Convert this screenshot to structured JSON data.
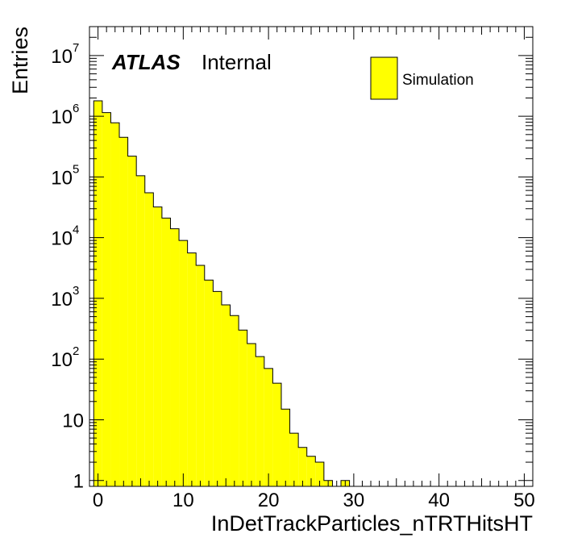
{
  "chart_data": {
    "type": "bar",
    "style": "histogram",
    "log_scale_y": true,
    "xlabel": "InDetTrackParticles_nTRTHitsHT",
    "ylabel": "Entries",
    "xlim": [
      -1,
      51
    ],
    "ylim": [
      0.8,
      30000000
    ],
    "x_ticks": [
      0,
      10,
      20,
      30,
      40,
      50
    ],
    "y_ticks": [
      {
        "value": 1,
        "base": "1",
        "exp": ""
      },
      {
        "value": 10,
        "base": "10",
        "exp": ""
      },
      {
        "value": 100,
        "base": "10",
        "exp": "2"
      },
      {
        "value": 1000,
        "base": "10",
        "exp": "3"
      },
      {
        "value": 10000,
        "base": "10",
        "exp": "4"
      },
      {
        "value": 100000,
        "base": "10",
        "exp": "5"
      },
      {
        "value": 1000000,
        "base": "10",
        "exp": "6"
      },
      {
        "value": 10000000,
        "base": "10",
        "exp": "7"
      }
    ],
    "bin_width": 1,
    "bins": [
      {
        "x": 0,
        "y": 1800000
      },
      {
        "x": 1,
        "y": 1150000
      },
      {
        "x": 2,
        "y": 780000
      },
      {
        "x": 3,
        "y": 450000
      },
      {
        "x": 4,
        "y": 220000
      },
      {
        "x": 5,
        "y": 105000
      },
      {
        "x": 6,
        "y": 55000
      },
      {
        "x": 7,
        "y": 32000
      },
      {
        "x": 8,
        "y": 21000
      },
      {
        "x": 9,
        "y": 14000
      },
      {
        "x": 10,
        "y": 9000
      },
      {
        "x": 11,
        "y": 5600
      },
      {
        "x": 12,
        "y": 3500
      },
      {
        "x": 13,
        "y": 2000
      },
      {
        "x": 14,
        "y": 1300
      },
      {
        "x": 15,
        "y": 780
      },
      {
        "x": 16,
        "y": 520
      },
      {
        "x": 17,
        "y": 300
      },
      {
        "x": 18,
        "y": 180
      },
      {
        "x": 19,
        "y": 110
      },
      {
        "x": 20,
        "y": 70
      },
      {
        "x": 21,
        "y": 40
      },
      {
        "x": 22,
        "y": 15
      },
      {
        "x": 23,
        "y": 6
      },
      {
        "x": 24,
        "y": 3.5
      },
      {
        "x": 25,
        "y": 2.5
      },
      {
        "x": 26,
        "y": 2
      },
      {
        "x": 27,
        "y": 1
      },
      {
        "x": 28,
        "y": 0
      },
      {
        "x": 29,
        "y": 1
      }
    ],
    "bar_color": "#ffff00",
    "edge_color": "#000000",
    "legend": {
      "entries": [
        "Simulation"
      ],
      "placement": "top-right"
    }
  },
  "label": {
    "atlas": "ATLAS",
    "status": "Internal"
  }
}
